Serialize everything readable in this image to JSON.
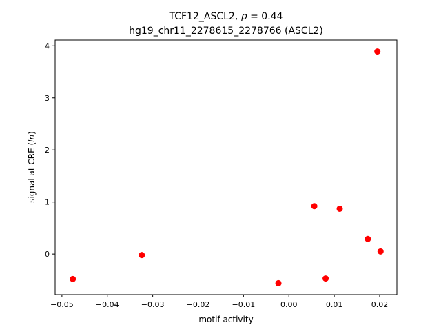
{
  "chart_data": {
    "type": "scatter",
    "title_line1_prefix": "TCF12_ASCL2, ",
    "title_line1_rho": "ρ",
    "title_line1_suffix": " = 0.44",
    "title_line2": "hg19_chr11_2278615_2278766 (ASCL2)",
    "xlabel": "motif activity",
    "ylabel_prefix": "signal at CRE (",
    "ylabel_ln": "ln",
    "ylabel_suffix": ")",
    "xlim": [
      -0.0515,
      0.0238
    ],
    "ylim": [
      -0.78,
      4.11
    ],
    "xticks": [
      -0.05,
      -0.04,
      -0.03,
      -0.02,
      -0.01,
      0.0,
      0.01,
      0.02
    ],
    "xtick_labels": [
      "−0.05",
      "−0.04",
      "−0.03",
      "−0.02",
      "−0.01",
      "0.00",
      "0.01",
      "0.02"
    ],
    "yticks": [
      0,
      1,
      2,
      3,
      4
    ],
    "ytick_labels": [
      "0",
      "1",
      "2",
      "3",
      "4"
    ],
    "grid": false,
    "marker_color": "#ff0000",
    "x": [
      -0.0476,
      -0.0324,
      -0.0023,
      0.0056,
      0.0081,
      0.0112,
      0.0174,
      0.0195,
      0.0202
    ],
    "y": [
      -0.48,
      -0.02,
      -0.56,
      0.92,
      -0.47,
      0.87,
      0.29,
      3.89,
      0.05
    ]
  }
}
